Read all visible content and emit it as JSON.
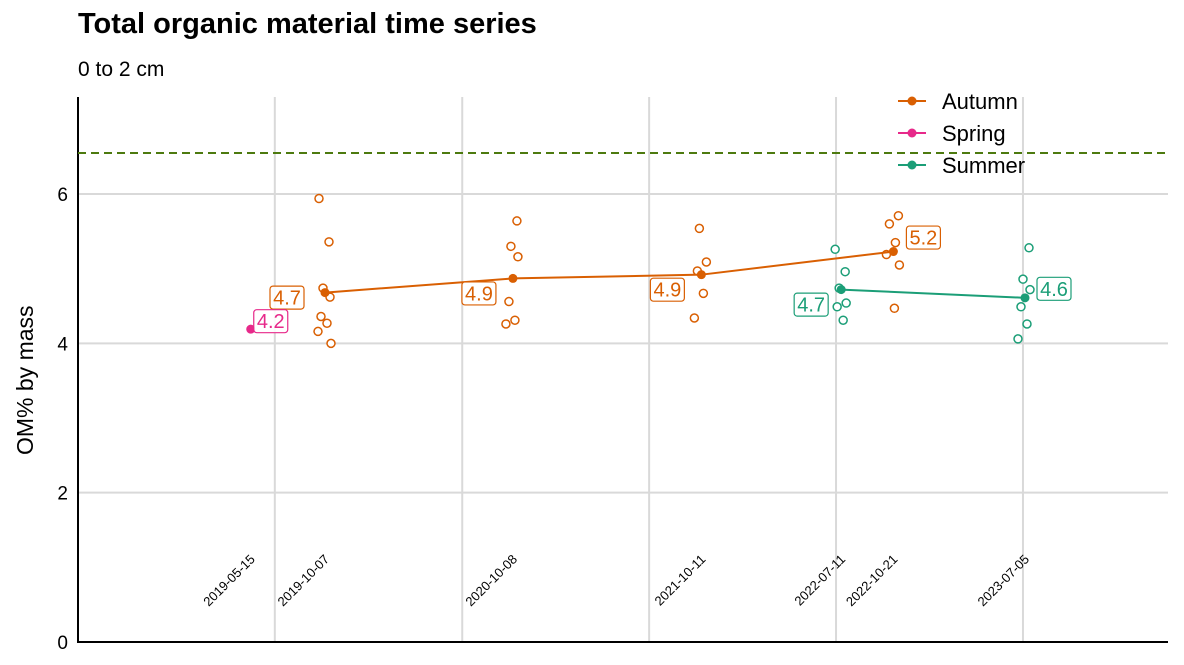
{
  "chart_data": {
    "type": "line",
    "title": "Total organic material time series",
    "subtitle": "0 to 2 cm",
    "ylabel": "OM% by mass",
    "ylim": [
      0,
      7.3
    ],
    "yticks": [
      "0",
      "2",
      "4",
      "6"
    ],
    "reference_line": {
      "value": 6.55,
      "style": "dashed",
      "color": "#4d7a0f"
    },
    "grid": true,
    "legend_position": "top-right",
    "dates": [
      "2019-05-15",
      "2019-10-07",
      "2020-10-08",
      "2021-10-11",
      "2022-07-11",
      "2022-10-21",
      "2023-07-05"
    ],
    "series": [
      {
        "name": "Autumn",
        "color": "#d95f02",
        "points": [
          {
            "date": "2019-10-07",
            "mean": 4.68,
            "label": "4.7",
            "samples": [
              5.94,
              5.36,
              4.74,
              4.62,
              4.36,
              4.27,
              4.16,
              4.0
            ]
          },
          {
            "date": "2020-10-08",
            "mean": 4.87,
            "label": "4.9",
            "samples": [
              5.64,
              5.3,
              5.16,
              4.56,
              4.31,
              4.26
            ]
          },
          {
            "date": "2021-10-11",
            "mean": 4.92,
            "label": "4.9",
            "samples": [
              5.54,
              5.09,
              4.97,
              4.67,
              4.34
            ]
          },
          {
            "date": "2022-10-21",
            "mean": 5.23,
            "label": "5.2",
            "samples": [
              5.71,
              5.6,
              5.35,
              5.19,
              5.05,
              4.47
            ]
          }
        ]
      },
      {
        "name": "Spring",
        "color": "#e7298a",
        "points": [
          {
            "date": "2019-05-15",
            "mean": 4.19,
            "label": "4.2",
            "samples": []
          }
        ]
      },
      {
        "name": "Summer",
        "color": "#1b9e77",
        "points": [
          {
            "date": "2022-07-11",
            "mean": 4.72,
            "label": "4.7",
            "samples": [
              5.26,
              4.96,
              4.74,
              4.54,
              4.49,
              4.31
            ]
          },
          {
            "date": "2023-07-05",
            "mean": 4.61,
            "label": "4.6",
            "samples": [
              5.28,
              4.86,
              4.72,
              4.49,
              4.26,
              4.06
            ]
          }
        ]
      }
    ]
  }
}
